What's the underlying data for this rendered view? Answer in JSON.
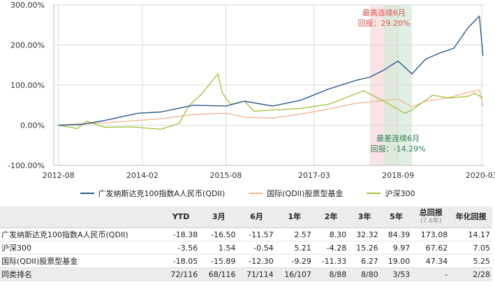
{
  "chart_data": {
    "type": "line",
    "x_ticks": [
      "2012-08",
      "2014-02",
      "2015-08",
      "2017-03",
      "2018-09",
      "2020-03"
    ],
    "y_ticks": [
      "300.00%",
      "200.00%",
      "100.00%",
      "0.00%",
      "-100.00%"
    ],
    "ylim": [
      -100,
      300
    ],
    "grid": true,
    "legend_position": "bottom",
    "series": [
      {
        "name": "广发纳斯达克100指数A人民币(QDII)",
        "color": "#2b5a8a",
        "points": [
          [
            "2012-08-01",
            0
          ],
          [
            "2013-01-01",
            2
          ],
          [
            "2013-06-01",
            12
          ],
          [
            "2014-01-01",
            30
          ],
          [
            "2014-06-01",
            33
          ],
          [
            "2015-01-01",
            50
          ],
          [
            "2015-08-01",
            48
          ],
          [
            "2015-12-01",
            60
          ],
          [
            "2016-06-01",
            48
          ],
          [
            "2016-12-01",
            62
          ],
          [
            "2017-06-01",
            90
          ],
          [
            "2017-12-01",
            112
          ],
          [
            "2018-03-01",
            120
          ],
          [
            "2018-06-01",
            138
          ],
          [
            "2018-09-01",
            160
          ],
          [
            "2018-12-01",
            128
          ],
          [
            "2019-03-01",
            165
          ],
          [
            "2019-06-01",
            180
          ],
          [
            "2019-09-01",
            192
          ],
          [
            "2019-12-01",
            242
          ],
          [
            "2020-02-15",
            272
          ],
          [
            "2020-03-10",
            173
          ]
        ]
      },
      {
        "name": "国际(QDII)股票型基金",
        "color": "#f0b896",
        "points": [
          [
            "2012-08-01",
            0
          ],
          [
            "2013-01-01",
            4
          ],
          [
            "2013-06-01",
            6
          ],
          [
            "2014-01-01",
            12
          ],
          [
            "2014-06-01",
            16
          ],
          [
            "2015-01-01",
            27
          ],
          [
            "2015-08-01",
            30
          ],
          [
            "2015-12-01",
            20
          ],
          [
            "2016-06-01",
            18
          ],
          [
            "2016-12-01",
            28
          ],
          [
            "2017-06-01",
            40
          ],
          [
            "2017-12-01",
            55
          ],
          [
            "2018-03-01",
            58
          ],
          [
            "2018-06-01",
            62
          ],
          [
            "2018-09-01",
            65
          ],
          [
            "2018-12-01",
            46
          ],
          [
            "2019-03-01",
            60
          ],
          [
            "2019-06-01",
            65
          ],
          [
            "2019-09-01",
            72
          ],
          [
            "2019-12-01",
            82
          ],
          [
            "2020-02-15",
            88
          ],
          [
            "2020-03-10",
            47
          ]
        ]
      },
      {
        "name": "沪深300",
        "color": "#a9c23f",
        "points": [
          [
            "2012-08-01",
            0
          ],
          [
            "2012-12-01",
            -8
          ],
          [
            "2013-02-01",
            10
          ],
          [
            "2013-06-01",
            -5
          ],
          [
            "2013-12-01",
            -4
          ],
          [
            "2014-06-01",
            -10
          ],
          [
            "2014-10-01",
            5
          ],
          [
            "2014-12-01",
            48
          ],
          [
            "2015-03-01",
            80
          ],
          [
            "2015-06-10",
            128
          ],
          [
            "2015-07-10",
            80
          ],
          [
            "2015-09-01",
            52
          ],
          [
            "2015-12-01",
            60
          ],
          [
            "2016-02-01",
            35
          ],
          [
            "2016-06-01",
            38
          ],
          [
            "2016-12-01",
            42
          ],
          [
            "2017-06-01",
            52
          ],
          [
            "2018-01-20",
            86
          ],
          [
            "2018-06-01",
            60
          ],
          [
            "2018-10-15",
            30
          ],
          [
            "2018-12-01",
            38
          ],
          [
            "2019-04-15",
            75
          ],
          [
            "2019-08-01",
            68
          ],
          [
            "2019-12-01",
            72
          ],
          [
            "2020-01-15",
            80
          ],
          [
            "2020-03-10",
            68
          ]
        ]
      }
    ],
    "annotations": [
      {
        "label": "最高连续6月",
        "value": "回报：29.20%",
        "from": "2018-03-01",
        "to": "2018-09-01",
        "color": "#f7d9dc",
        "text_color": "#d9534f"
      },
      {
        "label": "最差连续6月",
        "value": "回报：-14.29%",
        "from": "2018-06-01",
        "to": "2018-12-01",
        "color": "#d6ead9",
        "text_color": "#2e7d4f"
      }
    ]
  },
  "table": {
    "headers": [
      "",
      "YTD",
      "3月",
      "6月",
      "1年",
      "2年",
      "3年",
      "5年",
      "总回报",
      "年化回报"
    ],
    "header_sub": {
      "8": "(7.6年)"
    },
    "rows": [
      [
        "广发纳斯达克100指数A人民币(QDII)",
        "-18.38",
        "-16.50",
        "-11.57",
        "2.57",
        "8.30",
        "32.32",
        "84.39",
        "173.08",
        "14.17"
      ],
      [
        "沪深300",
        "-3.56",
        "1.54",
        "-0.54",
        "5.21",
        "-4.28",
        "15.26",
        "9.97",
        "67.62",
        "7.05"
      ],
      [
        "国际(QDII)股票型基金",
        "-18.05",
        "-15.89",
        "-12.30",
        "-9.29",
        "-11.33",
        "6.27",
        "19.00",
        "47.34",
        "5.25"
      ],
      [
        "同类排名",
        "72/116",
        "68/116",
        "71/114",
        "16/107",
        "8/88",
        "8/80",
        "3/53",
        "-",
        "2/28"
      ]
    ]
  }
}
